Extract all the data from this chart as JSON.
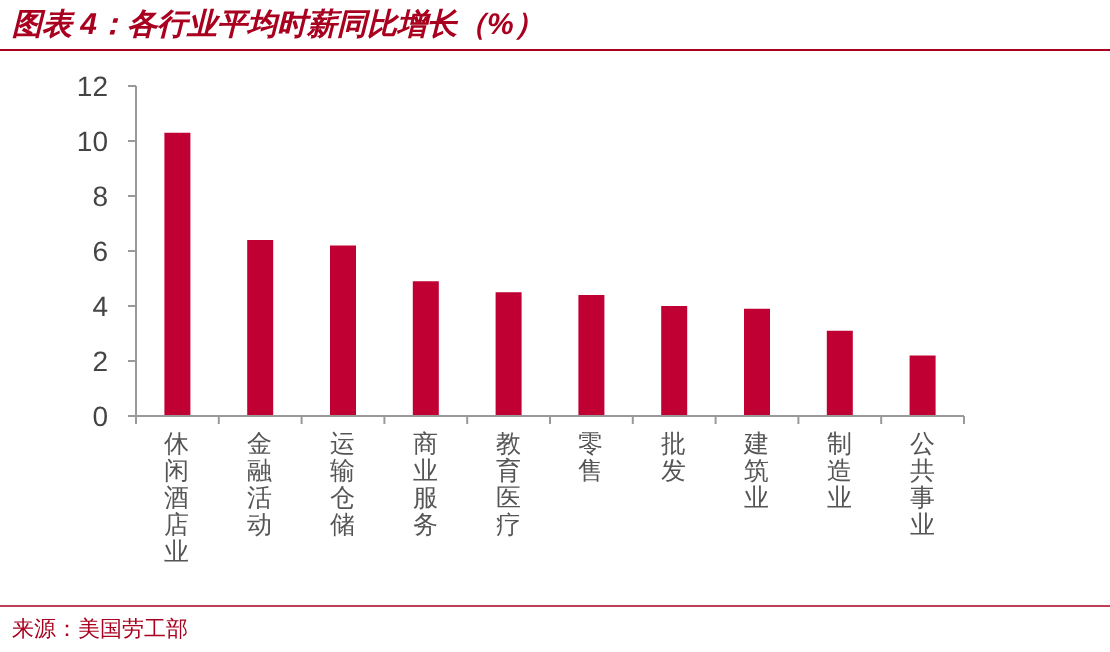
{
  "chart_data": {
    "type": "bar",
    "title": "图表 4：各行业平均时薪同比增长（%）",
    "categories": [
      "休闲酒店业",
      "金融活动",
      "运输仓储",
      "商业服务",
      "教育医疗",
      "零售",
      "批发",
      "建筑业",
      "制造业",
      "公共事业"
    ],
    "values": [
      10.3,
      6.4,
      6.2,
      4.9,
      4.5,
      4.4,
      4.0,
      3.9,
      3.1,
      2.2
    ],
    "color": "#c00032",
    "ylim": [
      0,
      12
    ],
    "yticks": [
      0,
      2,
      4,
      6,
      8,
      10,
      12
    ],
    "annotations": [
      "来源：美国劳工部"
    ]
  }
}
